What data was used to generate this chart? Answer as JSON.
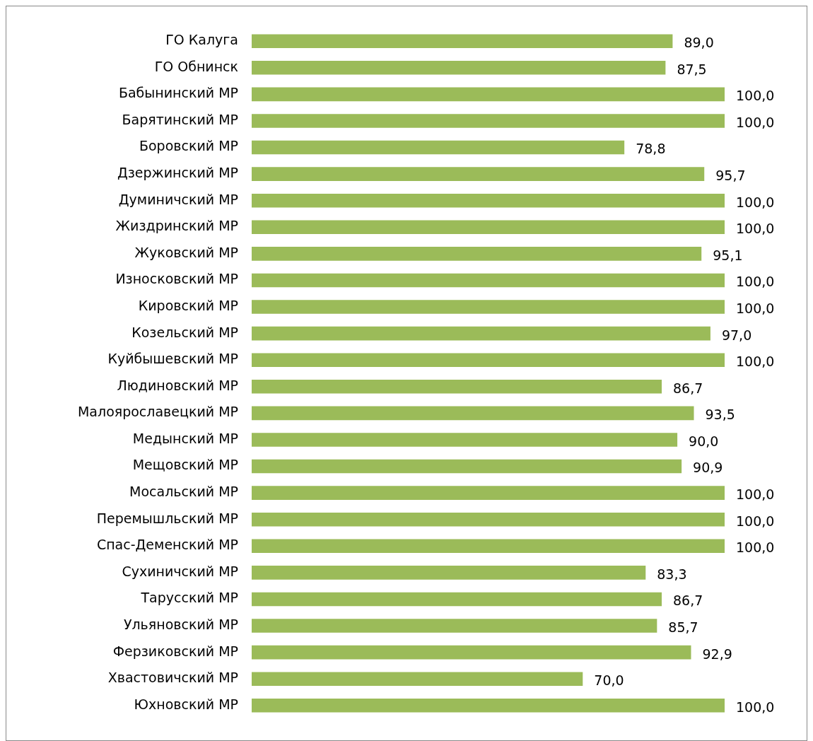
{
  "chart_data": {
    "type": "bar",
    "orientation": "horizontal",
    "categories": [
      "ГО Калуга",
      "ГО Обнинск",
      "Бабынинский МР",
      "Барятинский МР",
      "Боровский МР",
      "Дзержинский МР",
      "Думиничский МР",
      "Жиздринский МР",
      "Жуковский МР",
      "Износковский МР",
      "Кировский МР",
      "Козельский МР",
      "Куйбышевский МР",
      "Людиновский МР",
      "Малоярославецкий МР",
      "Медынский МР",
      "Мещовский МР",
      "Мосальский МР",
      "Перемышльский МР",
      "Спас-Деменский МР",
      "Сухиничский МР",
      "Тарусский МР",
      "Ульяновский МР",
      "Ферзиковский МР",
      "Хвастовичский МР",
      "Юхновский МР"
    ],
    "values": [
      89.0,
      87.5,
      100.0,
      100.0,
      78.8,
      95.7,
      100.0,
      100.0,
      95.1,
      100.0,
      100.0,
      97.0,
      100.0,
      86.7,
      93.5,
      90.0,
      90.9,
      100.0,
      100.0,
      100.0,
      83.3,
      86.7,
      85.7,
      92.9,
      70.0,
      100.0
    ],
    "value_labels": [
      "89,0",
      "87,5",
      "100,0",
      "100,0",
      "78,8",
      "95,7",
      "100,0",
      "100,0",
      "95,1",
      "100,0",
      "100,0",
      "97,0",
      "100,0",
      "86,7",
      "93,5",
      "90,0",
      "90,9",
      "100,0",
      "100,0",
      "100,0",
      "83,3",
      "86,7",
      "85,7",
      "92,9",
      "70,0",
      "100,0"
    ],
    "color": "#9bbb59",
    "xlim": [
      0,
      100
    ],
    "tick_labels": "y",
    "grid": false,
    "legend": false
  }
}
